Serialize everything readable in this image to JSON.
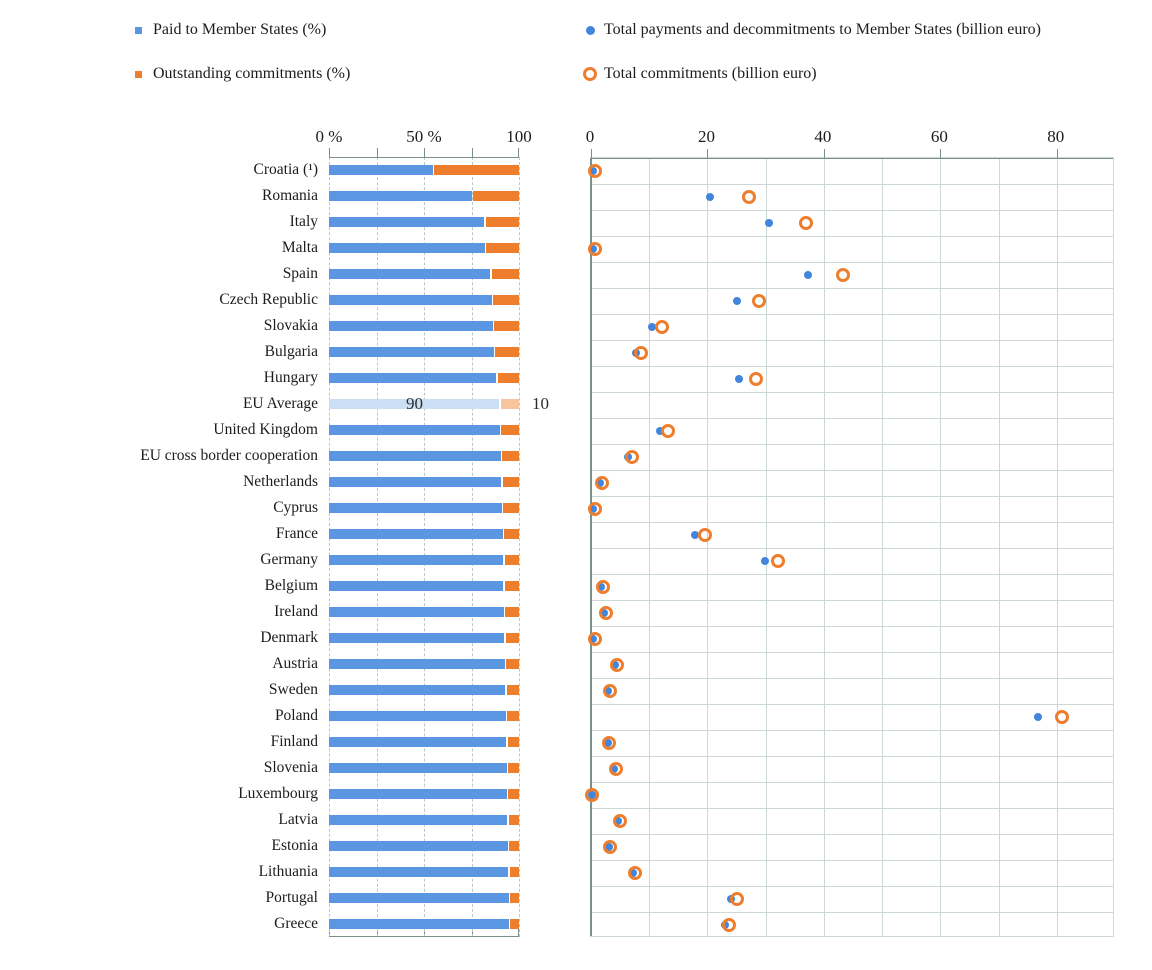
{
  "legend": {
    "items": [
      {
        "label": "Paid to Member States (%)",
        "marker": "square",
        "color": "#5a96e2"
      },
      {
        "label": "Outstanding commitments (%)",
        "marker": "square",
        "color": "#ee7d2c"
      },
      {
        "label": "Total payments and decommitments to Member States (billion euro)",
        "marker": "dot",
        "color": "#4285dc"
      },
      {
        "label": "Total commitments (billion euro)",
        "marker": "ring",
        "color": "#ee7d2c"
      }
    ]
  },
  "left_axis": {
    "tick_labels": [
      "0 %",
      "50 %",
      "100"
    ],
    "tick_values": [
      0,
      50,
      100
    ],
    "grid_values": [
      0,
      25,
      50,
      75,
      100
    ],
    "range": [
      0,
      100
    ],
    "grid_style": "dashed"
  },
  "right_axis": {
    "tick_labels": [
      "0",
      "20",
      "40",
      "60",
      "80"
    ],
    "tick_values": [
      0,
      20,
      40,
      60,
      80
    ],
    "grid_step": 10,
    "range": [
      0,
      90
    ],
    "grid_style": "solid"
  },
  "eu_average_labels": {
    "paid": "90",
    "outstanding": "10"
  },
  "colors": {
    "paid_bar": "#5a96e2",
    "outstanding_bar": "#ee7d2c",
    "payments_dot": "#4285dc",
    "commitments_ring": "#ee7d2c",
    "eu_average_paid": "#cadff3",
    "eu_average_outstanding": "#f8c49e",
    "grid_light": "#ccd8d5",
    "grid_dash": "#b9c8c5",
    "axis_dark": "#7a908d",
    "text": "#1c1c1c"
  },
  "chart_data": [
    {
      "type": "bar",
      "orientation": "horizontal",
      "stacked": true,
      "title": "",
      "xlabel": "",
      "ylabel": "",
      "xlim": [
        0,
        100
      ],
      "legend_position": "top-left",
      "grid": "dashed-vertical",
      "highlight_category": "EU Average",
      "highlight_value_labels": [
        "90",
        "10"
      ],
      "categories": [
        "Croatia (¹)",
        "Romania",
        "Italy",
        "Malta",
        "Spain",
        "Czech Republic",
        "Slovakia",
        "Bulgaria",
        "Hungary",
        "EU Average",
        "United Kingdom",
        "EU cross border cooperation",
        "Netherlands",
        "Cyprus",
        "France",
        "Germany",
        "Belgium",
        "Ireland",
        "Denmark",
        "Austria",
        "Sweden",
        "Poland",
        "Finland",
        "Slovenia",
        "Luxembourg",
        "Latvia",
        "Estonia",
        "Lithuania",
        "Portugal",
        "Greece"
      ],
      "series": [
        {
          "name": "Paid to Member States (%)",
          "values": [
            55,
            75.5,
            82,
            82.3,
            85.3,
            86,
            86.5,
            87,
            88.5,
            90,
            90.3,
            90.7,
            91,
            91.4,
            91.7,
            92,
            92.2,
            92.4,
            92.6,
            92.9,
            93.1,
            93.4,
            93.6,
            93.9,
            94.1,
            94.3,
            94.5,
            94.7,
            94.9,
            95.1
          ]
        },
        {
          "name": "Outstanding commitments (%)",
          "values": [
            45,
            24.5,
            18,
            17.7,
            14.7,
            14,
            13.5,
            13,
            11.5,
            10,
            9.7,
            9.3,
            9,
            8.6,
            8.3,
            8,
            7.8,
            7.6,
            7.4,
            7.1,
            6.9,
            6.6,
            6.4,
            6.1,
            5.9,
            5.7,
            5.5,
            5.3,
            5.1,
            4.9
          ]
        }
      ]
    },
    {
      "type": "scatter",
      "title": "",
      "xlabel": "",
      "ylabel": "",
      "xlim": [
        0,
        90
      ],
      "legend_position": "top-right",
      "grid": "solid",
      "note": "EU Average row has no markers",
      "categories": [
        "Croatia (¹)",
        "Romania",
        "Italy",
        "Malta",
        "Spain",
        "Czech Republic",
        "Slovakia",
        "Bulgaria",
        "Hungary",
        "EU Average",
        "United Kingdom",
        "EU cross border cooperation",
        "Netherlands",
        "Cyprus",
        "France",
        "Germany",
        "Belgium",
        "Ireland",
        "Denmark",
        "Austria",
        "Sweden",
        "Poland",
        "Finland",
        "Slovenia",
        "Luxembourg",
        "Latvia",
        "Estonia",
        "Lithuania",
        "Portugal",
        "Greece"
      ],
      "series": [
        {
          "name": "Total payments and decommitments to Member States (billion euro)",
          "values": [
            0.4,
            20.5,
            30.5,
            0.4,
            37.2,
            25,
            10.5,
            7.7,
            25.5,
            null,
            11.9,
            6.4,
            1.5,
            0.4,
            17.9,
            29.8,
            1.7,
            2.3,
            0.4,
            4.1,
            3,
            76.7,
            2.9,
            4,
            0.1,
            4.6,
            3.1,
            7.2,
            24,
            23
          ]
        },
        {
          "name": "Total commitments (billion euro)",
          "values": [
            0.8,
            27.2,
            37,
            0.8,
            43.4,
            29,
            12.2,
            8.6,
            28.5,
            null,
            13.3,
            7.1,
            1.9,
            0.7,
            19.7,
            32.2,
            2.1,
            2.7,
            0.8,
            4.5,
            3.3,
            81,
            3.2,
            4.4,
            0.3,
            5,
            3.4,
            7.7,
            25.2,
            23.8
          ]
        }
      ]
    }
  ]
}
